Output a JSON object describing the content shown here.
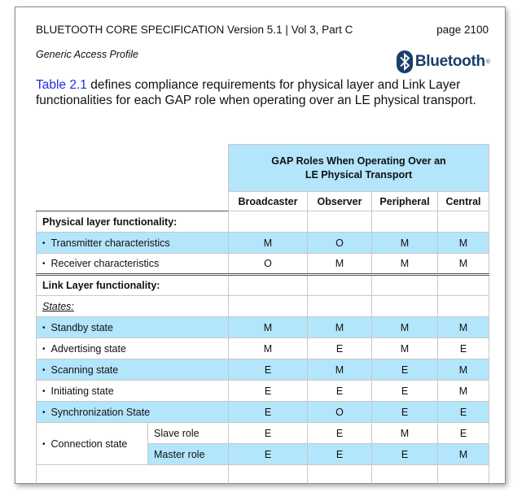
{
  "header": {
    "spec_title": "BLUETOOTH CORE SPECIFICATION Version 5.1 | Vol 3, Part C",
    "page_label": "page 2100",
    "section_title": "Generic Access Profile",
    "logo_text": "Bluetooth",
    "logo_mark": "®"
  },
  "intro": {
    "ref_text": "Table 2.1",
    "text": " defines compliance requirements for physical layer and Link Layer functionalities for each GAP role when operating over an LE physical transport."
  },
  "table": {
    "group_header_line1": "GAP Roles When Operating Over an",
    "group_header_line2": "LE Physical Transport",
    "columns": [
      "Broadcaster",
      "Observer",
      "Peripheral",
      "Central"
    ],
    "physical_section": "Physical layer functionality:",
    "physical_rows": [
      {
        "label": "Transmitter characteristics",
        "values": [
          "M",
          "O",
          "M",
          "M"
        ]
      },
      {
        "label": "Receiver characteristics",
        "values": [
          "O",
          "M",
          "M",
          "M"
        ]
      }
    ],
    "link_section": "Link Layer functionality:",
    "states_label": "States:",
    "state_rows": [
      {
        "label": "Standby state",
        "values": [
          "M",
          "M",
          "M",
          "M"
        ]
      },
      {
        "label": "Advertising state",
        "values": [
          "M",
          "E",
          "M",
          "E"
        ]
      },
      {
        "label": "Scanning state",
        "values": [
          "E",
          "M",
          "E",
          "M"
        ]
      },
      {
        "label": "Initiating state",
        "values": [
          "E",
          "E",
          "E",
          "M"
        ]
      },
      {
        "label": "Synchronization State",
        "values": [
          "E",
          "O",
          "E",
          "E"
        ]
      }
    ],
    "connection_label": "Connection state",
    "connection_rows": [
      {
        "label": "Slave role",
        "values": [
          "E",
          "E",
          "M",
          "E"
        ]
      },
      {
        "label": "Master role",
        "values": [
          "E",
          "E",
          "E",
          "M"
        ]
      }
    ]
  },
  "colors": {
    "row_highlight": "#b3e5fb",
    "link_text": "#1f2fe0",
    "logo": "#1a3d6b"
  }
}
